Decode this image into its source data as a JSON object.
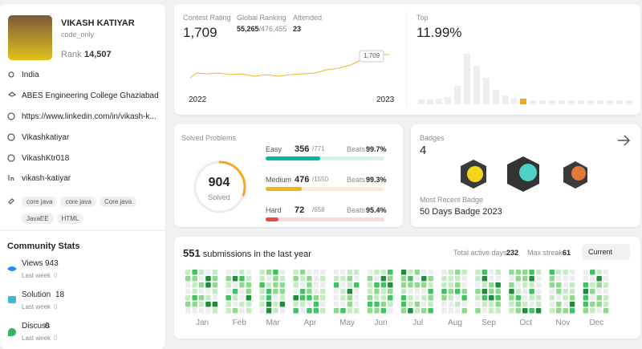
{
  "profile": {
    "name": "VIKASH KATIYAR",
    "username": "code_only",
    "rank_label": "Rank",
    "rank": "14,507"
  },
  "info": {
    "location": "India",
    "college": "ABES Engineering College Ghaziabad",
    "website": "https://www.linkedin.com/in/vikash-k...",
    "github": "Vikashkatiyar",
    "twitter": "VikashKtr018",
    "linkedin": "vikash-katiyar"
  },
  "skills": [
    "core java",
    "core java",
    "Core java",
    "JavaEE",
    "HTML"
  ],
  "community": {
    "title": "Community Stats",
    "items": [
      {
        "label": "Views",
        "value": 943,
        "sub": "Last week",
        "delta": 0
      },
      {
        "label": "Solution",
        "value": 18,
        "sub": "Last week",
        "delta": 0
      },
      {
        "label": "Discuss",
        "value": 0,
        "sub": "Last week",
        "delta": 0
      }
    ]
  },
  "contest": {
    "rating_label": "Contest Rating",
    "rating": "1,709",
    "global_label": "Global Ranking",
    "global": "55,265",
    "global_total": "/476,455",
    "attended_label": "Attended",
    "attended": 23,
    "x_start": "2022",
    "x_end": "2023",
    "tooltip": "1,709",
    "top_label": "Top",
    "top": "11.99%"
  },
  "solved": {
    "title": "Solved Problems",
    "total": 904,
    "total_label": "Solved",
    "beats_label": "Beats",
    "levels": [
      {
        "name": "Easy",
        "solved": 356,
        "total": {
          "value": 771,
          "label": "/771"
        },
        "beats": "99.7%"
      },
      {
        "name": "Medium",
        "solved": 476,
        "total": {
          "value": 1550,
          "label": "/1550"
        },
        "beats": "99.3%"
      },
      {
        "name": "Hard",
        "solved": 72,
        "total": {
          "value": 658,
          "label": "/658"
        },
        "beats": "95.4%"
      }
    ]
  },
  "badges": {
    "title": "Badges",
    "count": 4,
    "recent_label": "Most Recent Badge",
    "recent": "50 Days Badge 2023"
  },
  "submissions": {
    "count": 551,
    "text": "submissions in the last year",
    "active_label": "Total active days:",
    "active": 232,
    "streak_label": "Max streak:",
    "streak": 61,
    "period": "Current",
    "months": [
      "Jan",
      "Feb",
      "Mar",
      "Apr",
      "May",
      "Jun",
      "Jul",
      "Aug",
      "Sep",
      "Oct",
      "Nov",
      "Dec"
    ]
  }
}
